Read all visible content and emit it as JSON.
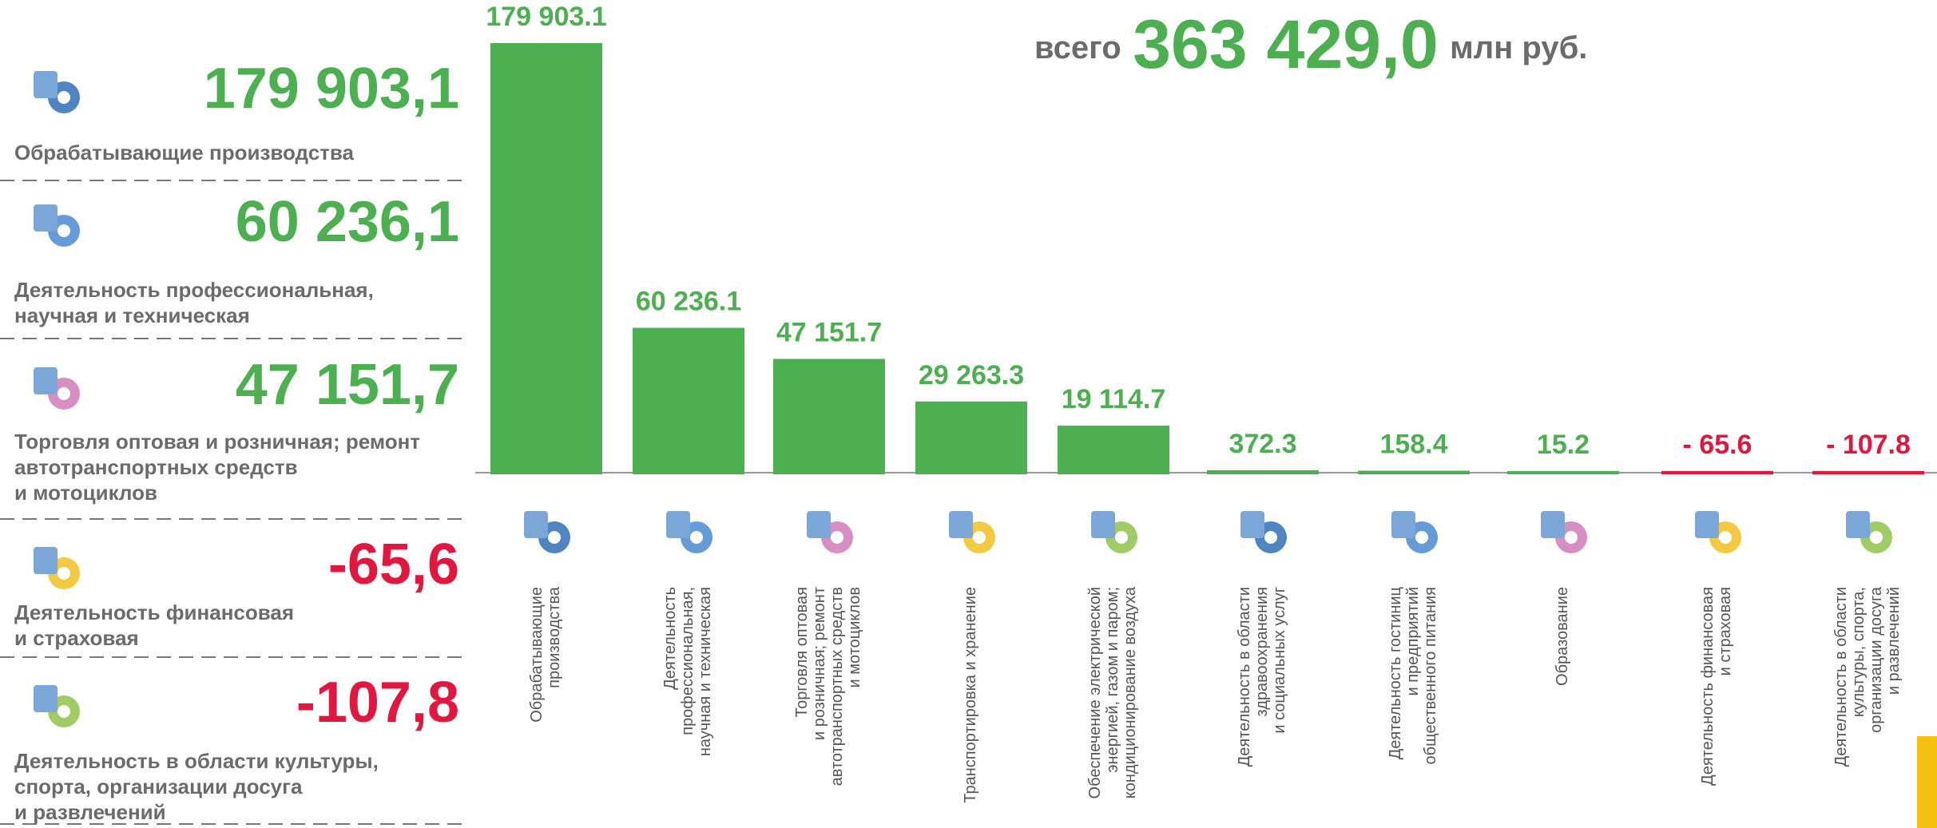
{
  "panel": {
    "items": [
      {
        "value": "179 903,1",
        "label": "Обрабатывающие производства",
        "color": "#4cb050"
      },
      {
        "value": "60 236,1",
        "label": "Деятельность профессиональная,\nнаучная и техническая",
        "color": "#4cb050"
      },
      {
        "value": "47 151,7",
        "label": "Торговля оптовая и розничная; ремонт\nавтотранспортных средств\nи мотоциклов",
        "color": "#4cb050"
      },
      {
        "value": "-65,6",
        "label": "Деятельность финансовая\nи страховая",
        "color": "#e2173f"
      },
      {
        "value": "-107,8",
        "label": "Деятельность в области культуры,\nспорта, организации досуга\nи развлечений",
        "color": "#e2173f"
      }
    ]
  },
  "total": {
    "prefix": "всего",
    "value": "363 429,0",
    "unit": "млн руб."
  },
  "chart_data": {
    "type": "bar",
    "categories": [
      "Обрабатывающие\nпроизводства",
      "Деятельность\nпрофессиональная,\nнаучная и техническая",
      "Торговля оптовая\nи розничная; ремонт\nавтотранспортных средств\nи мотоциклов",
      "Транспортировка и хранение",
      "Обеспечение электрической\nэнергией, газом и паром;\nкондиционирование воздуха",
      "Деятельность в области\nздравоохранения\nи социальных услуг",
      "Деятельность гостиниц\nи предприятий\nобщественного питания",
      "Образование",
      "Деятельность финансовая\nи страховая",
      "Деятельность в области\nкультуры, спорта,\nорганизации досуга\nи развлечений"
    ],
    "values": [
      179903.1,
      60236.1,
      47151.7,
      29263.3,
      19114.7,
      372.3,
      158.4,
      15.2,
      -65.6,
      -107.8
    ],
    "value_labels": [
      "179 903.1",
      "60 236.1",
      "47 151.7",
      "29 263.3",
      "19 114.7",
      "372.3",
      "158.4",
      "15.2",
      "- 65.6",
      "- 107.8"
    ],
    "color": "#4cb050",
    "negative_color": "#e2173f"
  }
}
